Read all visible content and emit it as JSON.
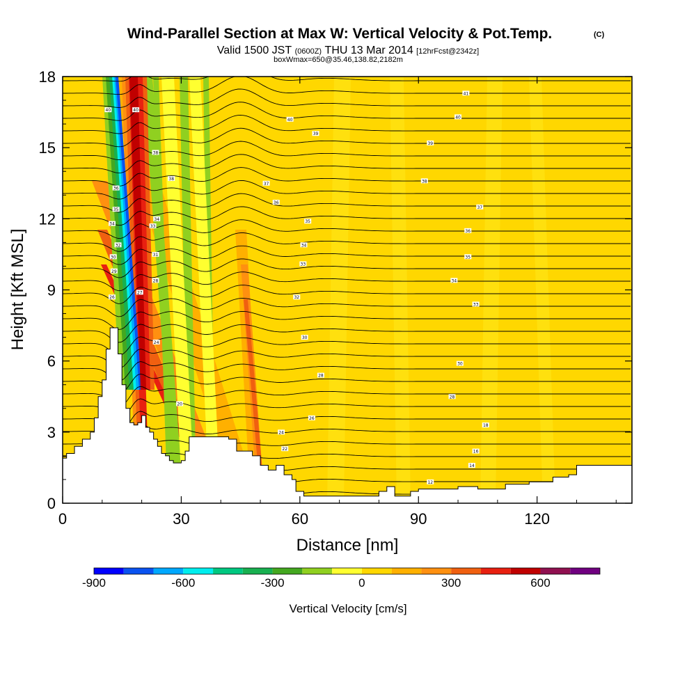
{
  "chart_data": {
    "type": "heatmap",
    "title": "Wind-Parallel Section at Max W: Vertical Velocity & Pot.Temp.",
    "title_mark": "(C)",
    "subtitle": {
      "prefix": "Valid 1500 JST",
      "utc": "(0600Z)",
      "date": "THU 13 Mar 2014",
      "forecast": "[12hrFcst@2342z]"
    },
    "box_info": "boxWmax=650@35.46,138.82,2182m",
    "xlabel": "Distance [nm]",
    "ylabel": "Height [Kft MSL]",
    "xlim": [
      0,
      144
    ],
    "ylim": [
      0,
      18
    ],
    "xticks": [
      0,
      30,
      60,
      90,
      120
    ],
    "yticks": [
      0,
      3,
      6,
      9,
      12,
      15,
      18
    ],
    "colorbar": {
      "label": "Vertical Velocity [cm/s]",
      "ticks": [
        -900,
        -600,
        -300,
        0,
        300,
        600
      ],
      "bins": [
        -900,
        -800,
        -700,
        -600,
        -500,
        -400,
        -300,
        -200,
        -100,
        0,
        100,
        200,
        300,
        400,
        500,
        600,
        700,
        800
      ],
      "colors": [
        "#0000ff",
        "#0a52f0",
        "#00a8ff",
        "#00eeee",
        "#00c880",
        "#18b050",
        "#44a820",
        "#90d020",
        "#ffff30",
        "#ffd700",
        "#ffb000",
        "#ff9010",
        "#f06010",
        "#e82010",
        "#c00000",
        "#901050",
        "#700080"
      ]
    },
    "terrain_kft": [
      [
        0,
        1.9
      ],
      [
        1,
        2.1
      ],
      [
        3,
        2.4
      ],
      [
        5,
        2.7
      ],
      [
        7,
        3.0
      ],
      [
        8,
        3.6
      ],
      [
        9,
        4.5
      ],
      [
        10,
        5.2
      ],
      [
        11,
        6.5
      ],
      [
        12,
        7.4
      ],
      [
        13,
        7.4
      ],
      [
        14,
        6.3
      ],
      [
        15,
        5.0
      ],
      [
        16,
        4.0
      ],
      [
        17,
        3.4
      ],
      [
        18,
        3.3
      ],
      [
        19,
        3.4
      ],
      [
        20,
        3.7
      ],
      [
        21,
        3.2
      ],
      [
        22,
        3.0
      ],
      [
        23,
        2.7
      ],
      [
        24,
        2.4
      ],
      [
        25,
        2.1
      ],
      [
        26,
        2.0
      ],
      [
        27,
        1.8
      ],
      [
        28,
        1.7
      ],
      [
        30,
        1.8
      ],
      [
        31,
        2.2
      ],
      [
        32,
        2.8
      ],
      [
        35,
        2.8
      ],
      [
        38,
        2.8
      ],
      [
        42,
        2.7
      ],
      [
        44,
        2.2
      ],
      [
        46,
        2.2
      ],
      [
        48,
        2.0
      ],
      [
        50,
        1.6
      ],
      [
        52,
        1.4
      ],
      [
        54,
        1.6
      ],
      [
        56,
        1.2
      ],
      [
        58,
        1.0
      ],
      [
        59,
        0.5
      ],
      [
        61,
        0.3
      ],
      [
        65,
        0.3
      ],
      [
        70,
        0.3
      ],
      [
        75,
        0.3
      ],
      [
        80,
        0.5
      ],
      [
        82,
        0.7
      ],
      [
        84,
        0.3
      ],
      [
        88,
        0.5
      ],
      [
        90,
        0.6
      ],
      [
        96,
        0.6
      ],
      [
        100,
        0.7
      ],
      [
        104,
        0.7
      ],
      [
        105,
        0.6
      ],
      [
        110,
        0.6
      ],
      [
        112,
        0.8
      ],
      [
        118,
        0.9
      ],
      [
        124,
        1.1
      ],
      [
        128,
        1.2
      ],
      [
        130,
        1.6
      ],
      [
        135,
        1.6
      ],
      [
        140,
        1.6
      ],
      [
        144,
        1.6
      ]
    ],
    "contour_labels": [
      {
        "x": 11.5,
        "y": 16.6,
        "text": "40"
      },
      {
        "x": 18.5,
        "y": 16.6,
        "text": "40"
      },
      {
        "x": 23.5,
        "y": 14.8,
        "text": "38"
      },
      {
        "x": 27.5,
        "y": 13.7,
        "text": "38"
      },
      {
        "x": 13.5,
        "y": 13.3,
        "text": "36"
      },
      {
        "x": 13.5,
        "y": 12.4,
        "text": "35"
      },
      {
        "x": 23.8,
        "y": 12.0,
        "text": "34"
      },
      {
        "x": 12.5,
        "y": 11.8,
        "text": "34"
      },
      {
        "x": 22.8,
        "y": 11.7,
        "text": "33"
      },
      {
        "x": 14.0,
        "y": 10.9,
        "text": "32"
      },
      {
        "x": 23.5,
        "y": 10.5,
        "text": "31"
      },
      {
        "x": 12.8,
        "y": 10.4,
        "text": "30"
      },
      {
        "x": 13.0,
        "y": 9.8,
        "text": "29"
      },
      {
        "x": 23.5,
        "y": 9.4,
        "text": "28"
      },
      {
        "x": 19.5,
        "y": 8.9,
        "text": "27"
      },
      {
        "x": 12.5,
        "y": 8.7,
        "text": "26"
      },
      {
        "x": 23.7,
        "y": 6.8,
        "text": "24"
      },
      {
        "x": 29.6,
        "y": 4.2,
        "text": "20"
      },
      {
        "x": 57.5,
        "y": 16.2,
        "text": "40"
      },
      {
        "x": 64.0,
        "y": 15.6,
        "text": "39"
      },
      {
        "x": 51.5,
        "y": 13.5,
        "text": "37"
      },
      {
        "x": 54.0,
        "y": 12.7,
        "text": "36"
      },
      {
        "x": 62.0,
        "y": 11.9,
        "text": "35"
      },
      {
        "x": 61.0,
        "y": 10.9,
        "text": "34"
      },
      {
        "x": 60.8,
        "y": 10.1,
        "text": "33"
      },
      {
        "x": 59.2,
        "y": 8.7,
        "text": "32"
      },
      {
        "x": 61.2,
        "y": 7.0,
        "text": "30"
      },
      {
        "x": 65.3,
        "y": 5.4,
        "text": "28"
      },
      {
        "x": 63.0,
        "y": 3.6,
        "text": "26"
      },
      {
        "x": 55.3,
        "y": 3.0,
        "text": "24"
      },
      {
        "x": 56.2,
        "y": 2.3,
        "text": "22"
      },
      {
        "x": 102.0,
        "y": 17.3,
        "text": "41"
      },
      {
        "x": 100.0,
        "y": 16.3,
        "text": "40"
      },
      {
        "x": 93.0,
        "y": 15.2,
        "text": "39"
      },
      {
        "x": 91.5,
        "y": 13.6,
        "text": "38"
      },
      {
        "x": 105.5,
        "y": 12.5,
        "text": "37"
      },
      {
        "x": 102.5,
        "y": 11.5,
        "text": "36"
      },
      {
        "x": 102.5,
        "y": 10.4,
        "text": "35"
      },
      {
        "x": 99.0,
        "y": 9.4,
        "text": "34"
      },
      {
        "x": 104.5,
        "y": 8.4,
        "text": "33"
      },
      {
        "x": 100.5,
        "y": 5.9,
        "text": "30"
      },
      {
        "x": 98.5,
        "y": 4.5,
        "text": "28"
      },
      {
        "x": 107.0,
        "y": 3.3,
        "text": "18"
      },
      {
        "x": 104.5,
        "y": 2.2,
        "text": "16"
      },
      {
        "x": 103.5,
        "y": 1.6,
        "text": "14"
      },
      {
        "x": 93.0,
        "y": 0.9,
        "text": "12"
      }
    ]
  }
}
